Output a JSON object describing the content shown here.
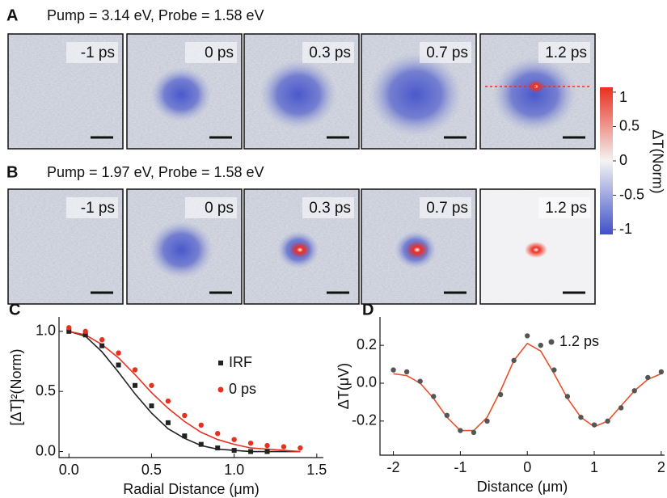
{
  "panel_a": {
    "label": "A",
    "title": "Pump = 3.14 eV, Probe = 1.58 eV",
    "frames": [
      "-1 ps",
      "0 ps",
      "0.3 ps",
      "0.7 ps",
      "1.2 ps"
    ]
  },
  "panel_b": {
    "label": "B",
    "title": "Pump = 1.97 eV, Probe = 1.58 eV",
    "frames": [
      "-1 ps",
      "0 ps",
      "0.3 ps",
      "0.7 ps",
      "1.2 ps"
    ]
  },
  "colorbar": {
    "label": "ΔT(Norm)",
    "ticks": [
      1,
      0.5,
      0,
      -0.5,
      -1
    ]
  },
  "chart_data": [
    {
      "type": "line",
      "panel_label": "C",
      "x_label": "Radial Distance (μm)",
      "y_label": "[ΔT]²(Norm)",
      "x": [
        0,
        0.1,
        0.2,
        0.3,
        0.4,
        0.5,
        0.6,
        0.7,
        0.8,
        0.9,
        1.0,
        1.1,
        1.2,
        1.3,
        1.4
      ],
      "series": [
        {
          "name": "IRF",
          "color": "#222222",
          "style": "square",
          "values": [
            1.0,
            0.97,
            0.88,
            0.72,
            0.55,
            0.38,
            0.24,
            0.13,
            0.06,
            0.03,
            0.01,
            0.0,
            0.0,
            null,
            null
          ]
        },
        {
          "name": "0 ps",
          "color": "#e8301f",
          "style": "dot",
          "values": [
            1.03,
            1.0,
            0.93,
            0.82,
            0.68,
            0.55,
            0.42,
            0.3,
            0.22,
            0.15,
            0.1,
            0.07,
            0.05,
            0.04,
            0.03
          ]
        },
        {
          "color": "#222222",
          "style": "line",
          "values": [
            1.0,
            0.96,
            0.83,
            0.66,
            0.48,
            0.32,
            0.19,
            0.11,
            0.05,
            0.02,
            0.01,
            0.0,
            0.0,
            0.0,
            0.0
          ]
        },
        {
          "color": "#e8301f",
          "style": "line",
          "values": [
            1.0,
            0.97,
            0.89,
            0.78,
            0.64,
            0.49,
            0.36,
            0.25,
            0.16,
            0.1,
            0.06,
            0.03,
            0.02,
            0.01,
            0.0
          ]
        }
      ],
      "xlim": [
        -0.06,
        1.54
      ],
      "ylim": [
        -0.05,
        1.12
      ],
      "xticks": [
        {
          "value": 0,
          "label": "0.0"
        },
        0.5,
        {
          "value": 1,
          "label": "1.0"
        },
        1.5
      ],
      "yticks": [
        {
          "value": 0,
          "label": "0.0"
        },
        0.5,
        {
          "value": 1,
          "label": "1.0"
        }
      ]
    },
    {
      "type": "line",
      "panel_label": "D",
      "x_label": "Distance (μm)",
      "y_label": "ΔT(μV)",
      "x": [
        -2,
        -1.8,
        -1.6,
        -1.4,
        -1.2,
        -1.0,
        -0.8,
        -0.6,
        -0.4,
        -0.2,
        0,
        0.2,
        0.4,
        0.6,
        0.8,
        1.0,
        1.2,
        1.4,
        1.6,
        1.8,
        2
      ],
      "series": [
        {
          "name": "1.2 ps",
          "color": "#555555",
          "style": "dot",
          "values": [
            0.07,
            0.06,
            0.01,
            -0.07,
            -0.17,
            -0.25,
            -0.26,
            -0.2,
            -0.06,
            0.12,
            0.25,
            0.2,
            0.07,
            -0.07,
            -0.18,
            -0.22,
            -0.2,
            -0.13,
            -0.04,
            0.03,
            0.06
          ]
        },
        {
          "color": "#e8502a",
          "style": "line",
          "values": [
            0.05,
            0.04,
            0.0,
            -0.08,
            -0.18,
            -0.25,
            -0.25,
            -0.18,
            -0.04,
            0.12,
            0.21,
            0.17,
            0.05,
            -0.08,
            -0.18,
            -0.23,
            -0.2,
            -0.12,
            -0.04,
            0.02,
            0.05
          ]
        }
      ],
      "xlim": [
        -2.2,
        2.05
      ],
      "ylim": [
        -0.38,
        0.35
      ],
      "xticks": [
        -2,
        -1,
        0,
        1,
        2
      ],
      "yticks": [
        0.2,
        {
          "value": 0,
          "label": "0.0"
        },
        -0.2
      ]
    }
  ]
}
